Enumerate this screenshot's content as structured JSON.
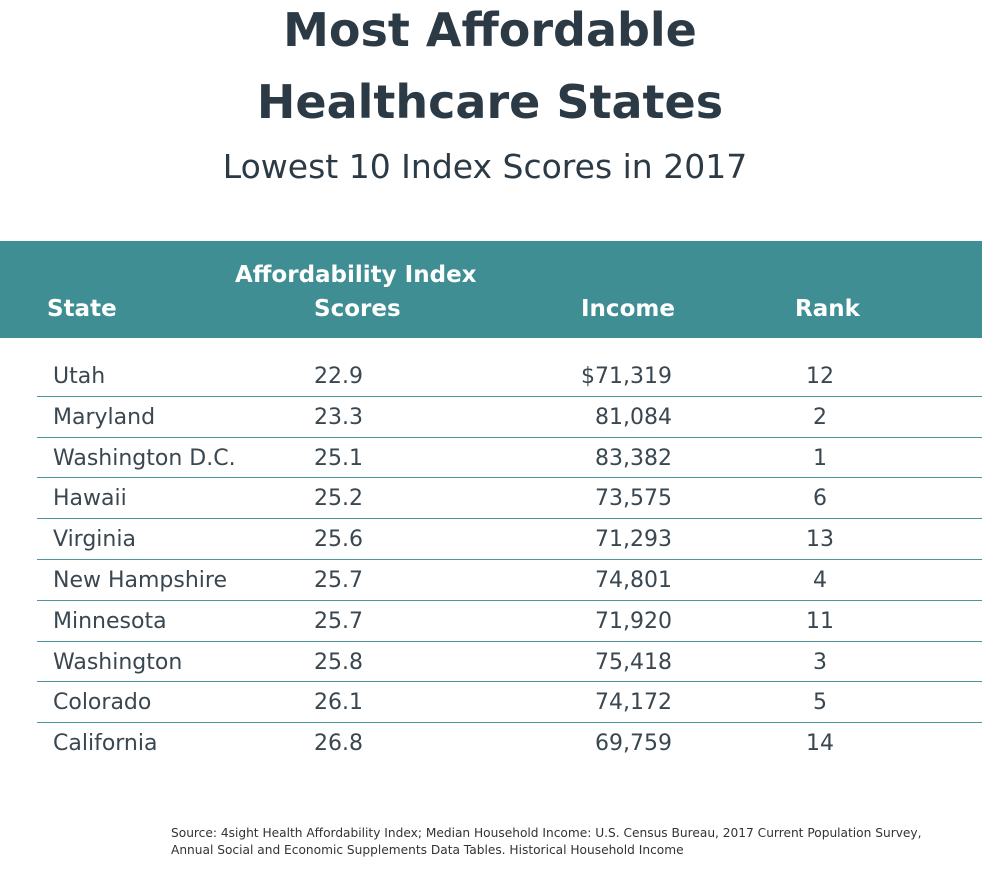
{
  "title_line1": "Most Affordable",
  "title_line2": "Healthcare States",
  "subtitle": "Lowest 10 Index Scores in 2017",
  "header": {
    "state": "State",
    "score_line1": "Affordability Index",
    "score_line2": "Scores",
    "income": "Income",
    "rank": "Rank"
  },
  "header_color": "#3f8e94",
  "rows": [
    {
      "state": "Utah",
      "score": "22.9",
      "income": "$71,319",
      "rank": "12"
    },
    {
      "state": "Maryland",
      "score": "23.3",
      "income": "81,084",
      "rank": "2"
    },
    {
      "state": "Washington D.C.",
      "score": "25.1",
      "income": "83,382",
      "rank": "1"
    },
    {
      "state": "Hawaii",
      "score": "25.2",
      "income": "73,575",
      "rank": "6"
    },
    {
      "state": "Virginia",
      "score": "25.6",
      "income": "71,293",
      "rank": "13"
    },
    {
      "state": "New Hampshire",
      "score": "25.7",
      "income": "74,801",
      "rank": "4"
    },
    {
      "state": "Minnesota",
      "score": "25.7",
      "income": "71,920",
      "rank": "11"
    },
    {
      "state": "Washington",
      "score": "25.8",
      "income": "75,418",
      "rank": "3"
    },
    {
      "state": "Colorado",
      "score": "26.1",
      "income": "74,172",
      "rank": "5"
    },
    {
      "state": "California",
      "score": "26.8",
      "income": "69,759",
      "rank": "14"
    }
  ],
  "source_line1": "Source: 4sight Health Affordability Index; Median Household Income: U.S. Census Bureau, 2017 Current Population Survey,",
  "source_line2": "Annual Social and Economic Supplements Data Tables. Historical Household Income"
}
